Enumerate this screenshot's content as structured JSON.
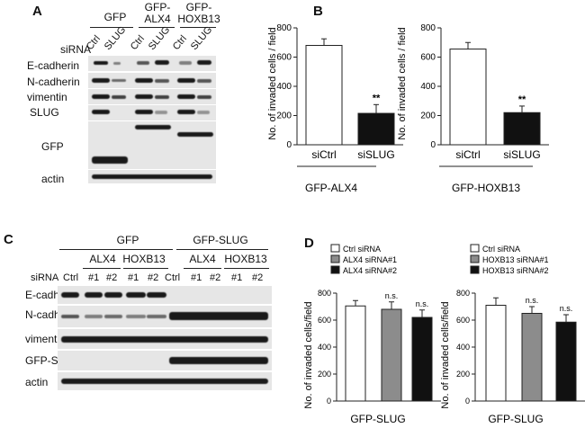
{
  "panels": {
    "a": "A",
    "b": "B",
    "c": "C",
    "d": "D"
  },
  "panelA": {
    "groups": [
      "GFP",
      "GFP-\nALX4",
      "GFP-\nHOXB13"
    ],
    "siRNA_label": "siRNA",
    "lanes": [
      "Ctrl",
      "SLUG",
      "Ctrl",
      "SLUG",
      "Ctrl",
      "SLUG"
    ],
    "rows": [
      "E-cadherin",
      "N-cadherin",
      "vimentin",
      "SLUG",
      "GFP",
      "actin"
    ]
  },
  "panelC": {
    "groups": [
      "GFP",
      "GFP-SLUG"
    ],
    "subgroups": [
      "ALX4",
      "HOXB13",
      "ALX4",
      "HOXB13"
    ],
    "siRNA_label": "siRNA",
    "lanes": [
      "Ctrl",
      "#1",
      "#2",
      "#1",
      "#2",
      "Ctrl",
      "#1",
      "#2",
      "#1",
      "#2"
    ],
    "rows": [
      "E-cadherin",
      "N-cadherin",
      "vimentin",
      "GFP-SLUG",
      "actin"
    ]
  },
  "chart_data": [
    {
      "type": "bar",
      "categories": [
        "siCtrl",
        "siSLUG"
      ],
      "values": [
        680,
        215
      ],
      "errors": [
        45,
        60
      ],
      "annotations": [
        "",
        "**"
      ],
      "ylabel": "No. of invaded cells / field",
      "xlabel": "GFP-ALX4",
      "ylim": [
        0,
        800
      ],
      "yticks": [
        0,
        200,
        400,
        600,
        800
      ],
      "colors": [
        "#ffffff",
        "#111111"
      ]
    },
    {
      "type": "bar",
      "categories": [
        "siCtrl",
        "siSLUG"
      ],
      "values": [
        655,
        220
      ],
      "errors": [
        45,
        45
      ],
      "annotations": [
        "",
        "**"
      ],
      "ylabel": "No. of invaded cells / field",
      "xlabel": "GFP-HOXB13",
      "ylim": [
        0,
        800
      ],
      "yticks": [
        0,
        200,
        400,
        600,
        800
      ],
      "colors": [
        "#ffffff",
        "#111111"
      ]
    },
    {
      "type": "bar",
      "categories": [
        "Ctrl siRNA",
        "ALX4 siRNA#1",
        "ALX4 siRNA#2"
      ],
      "values": [
        705,
        680,
        620
      ],
      "errors": [
        40,
        55,
        55
      ],
      "annotations": [
        "",
        "n.s.",
        "n.s."
      ],
      "legend": [
        "Ctrl siRNA",
        "ALX4 siRNA#1",
        "ALX4 siRNA#2"
      ],
      "ylabel": "No. of invaded cells/field",
      "xlabel": "GFP-SLUG",
      "ylim": [
        0,
        800
      ],
      "yticks": [
        0,
        200,
        400,
        600,
        800
      ],
      "colors": [
        "#ffffff",
        "#8c8c8c",
        "#111111"
      ]
    },
    {
      "type": "bar",
      "categories": [
        "Ctrl siRNA",
        "HOXB13 siRNA#1",
        "HOXB13 siRNA#2"
      ],
      "values": [
        710,
        650,
        585
      ],
      "errors": [
        55,
        50,
        55
      ],
      "annotations": [
        "",
        "n.s.",
        "n.s."
      ],
      "legend": [
        "Ctrl siRNA",
        "HOXB13 siRNA#1",
        "HOXB13 siRNA#2"
      ],
      "ylabel": "No. of invaded cells/field",
      "xlabel": "GFP-SLUG",
      "ylim": [
        0,
        800
      ],
      "yticks": [
        0,
        200,
        400,
        600,
        800
      ],
      "colors": [
        "#ffffff",
        "#8c8c8c",
        "#111111"
      ]
    }
  ]
}
